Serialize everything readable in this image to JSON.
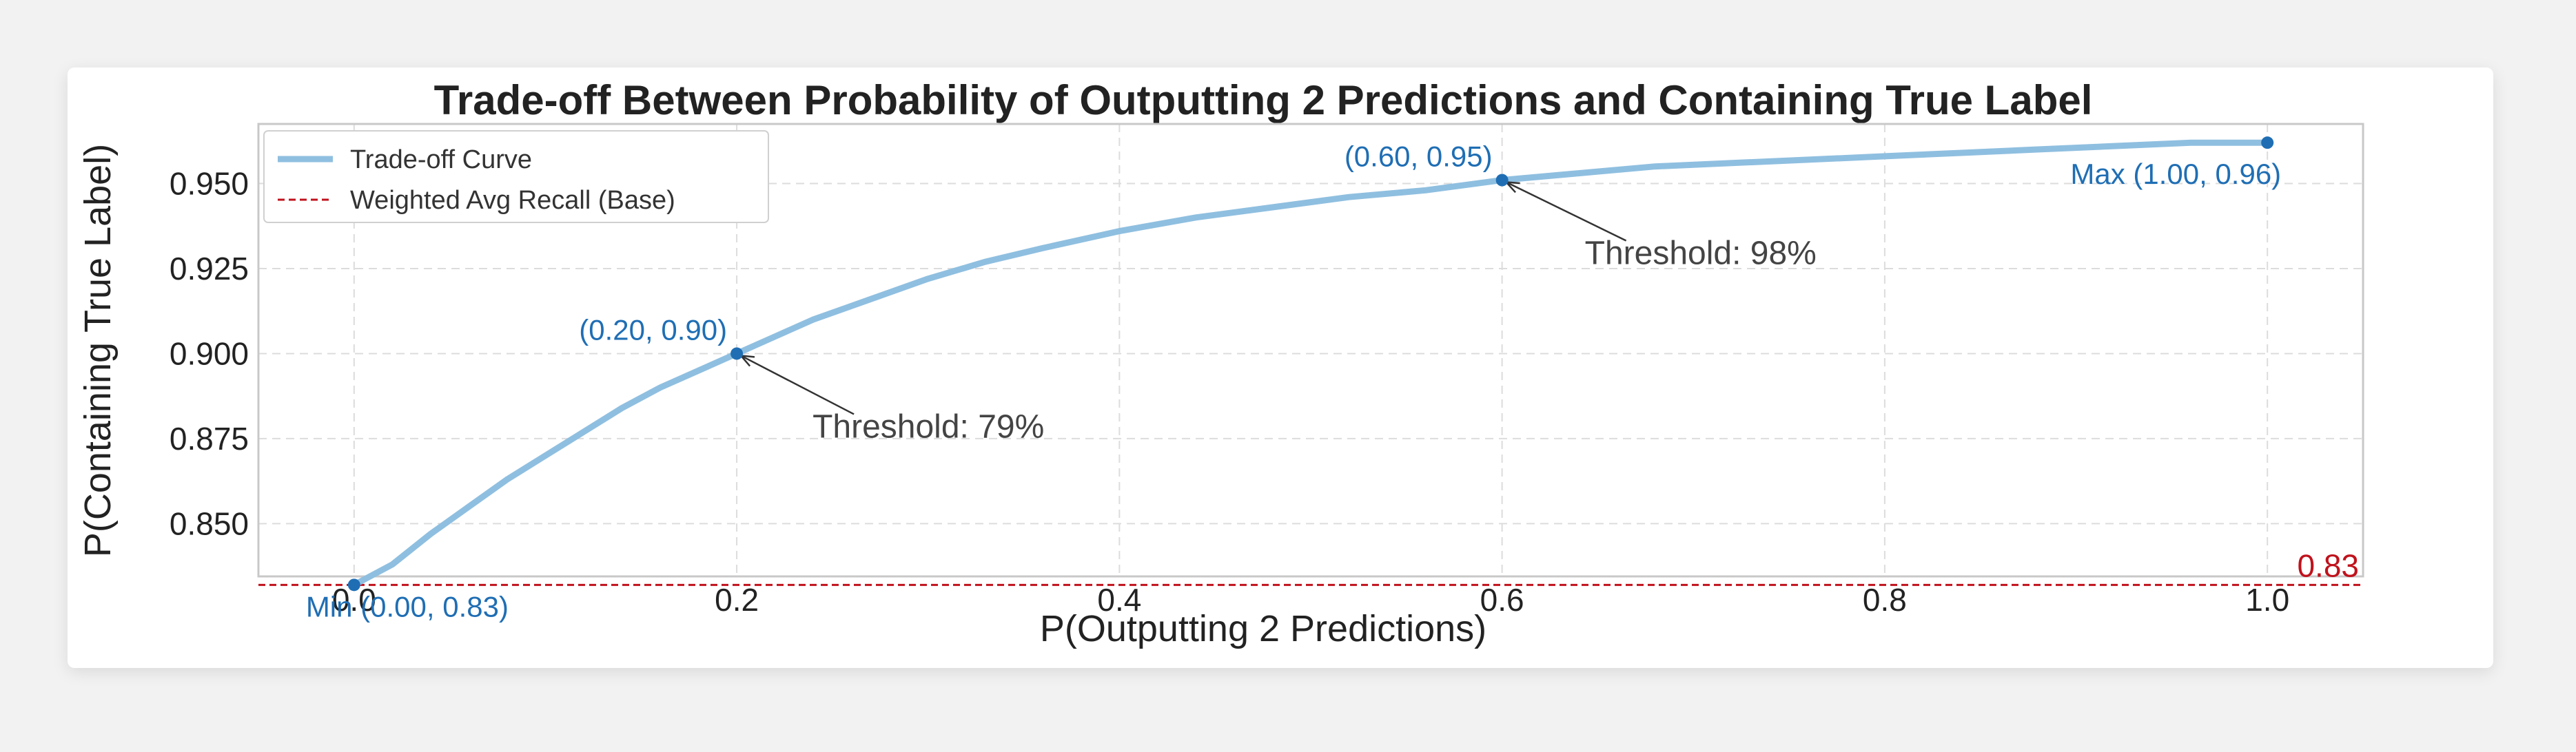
{
  "chart_data": {
    "type": "line",
    "title": "Trade-off Between Probability of Outputting 2 Predictions and Containing True Label",
    "xlabel": "P(Outputting 2 Predictions)",
    "ylabel": "P(Containing True Label)",
    "xlim": [
      -0.05,
      1.05
    ],
    "ylim": [
      0.8345,
      0.9675
    ],
    "xticks": [
      0.0,
      0.2,
      0.4,
      0.6,
      0.8,
      1.0
    ],
    "xtick_labels": [
      "0.0",
      "0.2",
      "0.4",
      "0.6",
      "0.8",
      "1.0"
    ],
    "yticks": [
      0.85,
      0.875,
      0.9,
      0.925,
      0.95
    ],
    "ytick_labels": [
      "0.850",
      "0.875",
      "0.900",
      "0.925",
      "0.950"
    ],
    "grid": true,
    "legend_position": "top-left",
    "series": [
      {
        "name": "Trade-off Curve",
        "color": "#8fbfe0",
        "x": [
          0.0,
          0.02,
          0.04,
          0.06,
          0.08,
          0.1,
          0.12,
          0.14,
          0.16,
          0.18,
          0.2,
          0.22,
          0.24,
          0.26,
          0.28,
          0.3,
          0.33,
          0.36,
          0.4,
          0.44,
          0.48,
          0.52,
          0.56,
          0.6,
          0.64,
          0.68,
          0.72,
          0.76,
          0.8,
          0.84,
          0.88,
          0.92,
          0.96,
          1.0
        ],
        "y": [
          0.832,
          0.838,
          0.847,
          0.855,
          0.863,
          0.87,
          0.877,
          0.884,
          0.89,
          0.895,
          0.9,
          0.905,
          0.91,
          0.914,
          0.918,
          0.922,
          0.927,
          0.931,
          0.936,
          0.94,
          0.943,
          0.946,
          0.948,
          0.951,
          0.953,
          0.955,
          0.956,
          0.957,
          0.958,
          0.959,
          0.96,
          0.961,
          0.962,
          0.962
        ]
      }
    ],
    "baseline": {
      "name": "Weighted Avg Recall (Base)",
      "value": 0.832,
      "label": "0.83",
      "color": "#c0121c"
    },
    "points": [
      {
        "x": 0.0,
        "y": 0.832,
        "label": "Min (0.00, 0.83)"
      },
      {
        "x": 0.2,
        "y": 0.9,
        "label": "(0.20, 0.90)"
      },
      {
        "x": 0.6,
        "y": 0.951,
        "label": "(0.60, 0.95)"
      },
      {
        "x": 1.0,
        "y": 0.962,
        "label": "Max (1.00, 0.96)"
      }
    ],
    "annotations": [
      {
        "text": "Threshold: 79%",
        "x": 0.2,
        "y": 0.9
      },
      {
        "text": "Threshold: 98%",
        "x": 0.6,
        "y": 0.951
      }
    ],
    "colors": {
      "curve": "#8fbfe0",
      "point": "#1f6eb4",
      "baseline": "#c0121c",
      "grid": "#dcdcdc"
    }
  }
}
